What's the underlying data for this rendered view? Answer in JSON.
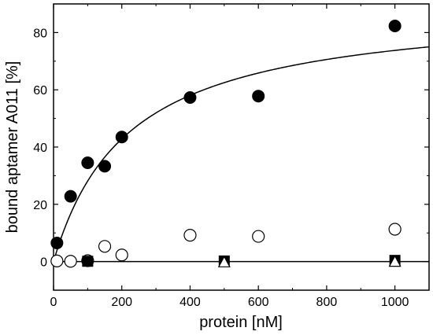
{
  "chart_data": {
    "type": "scatter",
    "xlabel": "protein [nM]",
    "ylabel": "bound aptamer A011 [%]",
    "xlim": [
      0,
      1100
    ],
    "ylim": [
      -10,
      90
    ],
    "xticks": [
      0,
      200,
      400,
      600,
      800,
      1000
    ],
    "yticks": [
      0,
      20,
      40,
      60,
      80
    ],
    "grid": false,
    "legend": "none",
    "series": [
      {
        "marker": "filled-circle",
        "color": "#000000",
        "x": [
          10,
          50,
          100,
          150,
          200,
          400,
          600,
          1000
        ],
        "y": [
          6.5,
          22.8,
          34.5,
          33.3,
          43.5,
          57.3,
          57.8,
          82.3
        ]
      },
      {
        "marker": "open-circle",
        "color": "#000000",
        "x": [
          10,
          50,
          100,
          150,
          200,
          400,
          600,
          1000
        ],
        "y": [
          0.2,
          0.1,
          0.3,
          5.3,
          2.3,
          9.2,
          8.8,
          11.3
        ]
      },
      {
        "marker": "filled-square",
        "color": "#000000",
        "x": [
          100,
          500,
          1000
        ],
        "y": [
          0.1,
          0.2,
          0.4
        ]
      },
      {
        "marker": "open-triangle",
        "color": "#000000",
        "x": [
          500,
          1000
        ],
        "y": [
          -0.2,
          0.0
        ]
      }
    ],
    "fit_curve": {
      "model": "hyperbolic binding",
      "x_range": [
        0,
        1100
      ],
      "Bmax": 90,
      "Kd": 220
    },
    "reference_line": {
      "y": 0
    }
  }
}
